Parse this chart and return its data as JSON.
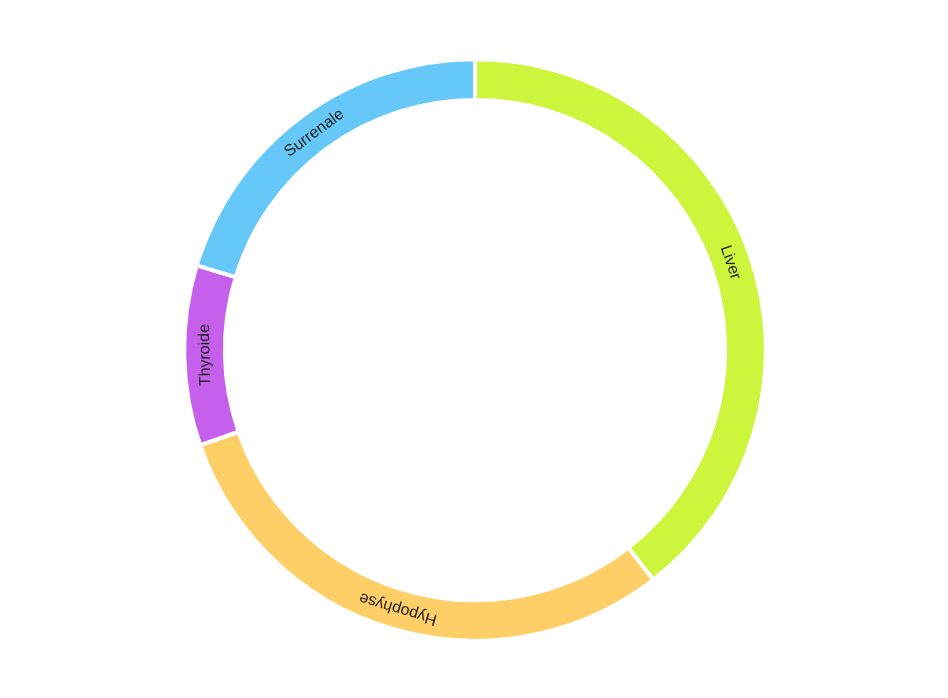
{
  "chart_data": {
    "type": "donut",
    "categories": [
      "Liver",
      "Hypophyse",
      "Thyroide",
      "Surrenale"
    ],
    "values": [
      39.5,
      30.2,
      10,
      20.3
    ],
    "colors": [
      "#ccf53c",
      "#fecf66",
      "#c660ec",
      "#66c8f8"
    ]
  }
}
